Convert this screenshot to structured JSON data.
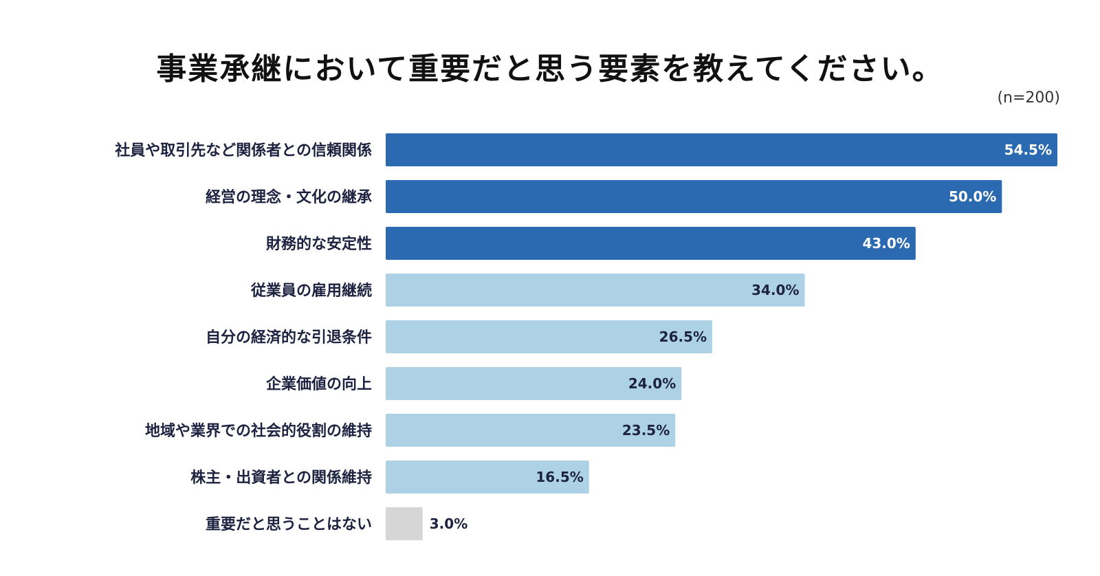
{
  "chart_data": {
    "type": "bar",
    "orientation": "horizontal",
    "title": "事業承継において重要だと思う要素を教えてください。",
    "note": "(n=200)",
    "unit": "%",
    "categories": [
      "社員や取引先など関係者との信頼関係",
      "経営の理念・文化の継承",
      "財務的な安定性",
      "従業員の雇用継続",
      "自分の経済的な引退条件",
      "企業価値の向上",
      "地域や業界での社会的役割の維持",
      "株主・出資者との関係維持",
      "重要だと思うことはない"
    ],
    "values": [
      54.5,
      50.0,
      43.0,
      34.0,
      26.5,
      24.0,
      23.5,
      16.5,
      3.0
    ],
    "value_labels": [
      "54.5%",
      "50.0%",
      "43.0%",
      "34.0%",
      "26.5%",
      "24.0%",
      "23.5%",
      "16.5%",
      "3.0%"
    ],
    "xlim": [
      0,
      54.5
    ],
    "grid": false,
    "legend": "none",
    "colors": {
      "top": "#2b6ab0",
      "middle": "#aed2e5",
      "none": "#d6d6d6",
      "top_label": "#ffffff",
      "middle_label": "#1d2240",
      "none_label": "#1d2240"
    },
    "bar_color_groups": [
      "top",
      "top",
      "top",
      "middle",
      "middle",
      "middle",
      "middle",
      "middle",
      "none"
    ]
  }
}
